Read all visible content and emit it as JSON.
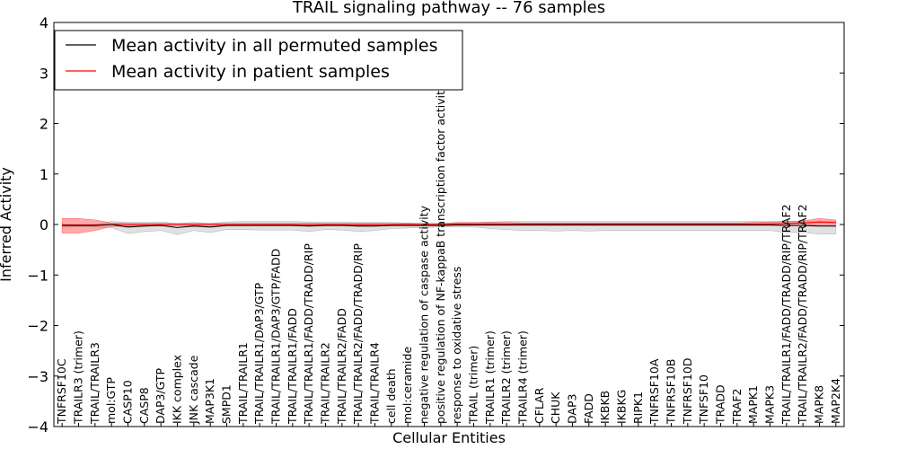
{
  "chart_data": {
    "type": "line",
    "title": "TRAIL signaling pathway -- 76 samples",
    "xlabel": "Cellular Entities",
    "ylabel": "Inferred Activity",
    "ylim": [
      -4,
      4
    ],
    "yticks": [
      -4,
      -3,
      -2,
      -1,
      0,
      1,
      2,
      3,
      4
    ],
    "ytick_labels": [
      "−4",
      "−3",
      "−2",
      "−1",
      "0",
      "1",
      "2",
      "3",
      "4"
    ],
    "grid": false,
    "legend_position": "top-left",
    "categories": [
      "TNFRSF10C",
      "TRAILR3 (trimer)",
      "TRAIL/TRAILR3",
      "mol:GTP",
      "CASP10",
      "CASP8",
      "DAP3/GTP",
      "IKK complex",
      "JNK cascade",
      "MAP3K1",
      "SMPD1",
      "TRAIL/TRAILR1",
      "TRAIL/TRAILR1/DAP3/GTP",
      "TRAIL/TRAILR1/DAP3/GTP/FADD",
      "TRAIL/TRAILR1/FADD",
      "TRAIL/TRAILR1/FADD/TRADD/RIP",
      "TRAIL/TRAILR2",
      "TRAIL/TRAILR2/FADD",
      "TRAIL/TRAILR2/FADD/TRADD/RIP",
      "TRAIL/TRAILR4",
      "cell death",
      "mol:ceramide",
      "negative regulation of caspase activity",
      "positive regulation of NF-kappaB transcription factor activity",
      "response to oxidative stress",
      "TRAIL (trimer)",
      "TRAILR1 (trimer)",
      "TRAILR2 (trimer)",
      "TRAILR4 (trimer)",
      "CFLAR",
      "CHUK",
      "DAP3",
      "FADD",
      "IKBKB",
      "IKBKG",
      "RIPK1",
      "TNFRSF10A",
      "TNFRSF10B",
      "TNFRSF10D",
      "TNFSF10",
      "TRADD",
      "TRAF2",
      "MAPK1",
      "MAPK3",
      "TRAIL/TRAILR1/FADD/TRADD/RIP/TRAF2",
      "TRAIL/TRAILR2/FADD/TRADD/RIP/TRAF2",
      "MAPK8",
      "MAP2K4"
    ],
    "series": [
      {
        "name": "Mean activity in all permuted samples",
        "color": "#000000",
        "values": [
          -0.02,
          -0.02,
          -0.02,
          0.0,
          -0.05,
          -0.03,
          -0.02,
          -0.06,
          -0.03,
          -0.05,
          -0.02,
          -0.02,
          -0.02,
          -0.02,
          -0.02,
          -0.03,
          -0.02,
          -0.02,
          -0.03,
          -0.03,
          -0.02,
          -0.02,
          -0.02,
          -0.02,
          -0.01,
          -0.01,
          -0.01,
          -0.01,
          -0.01,
          -0.01,
          -0.01,
          -0.01,
          -0.01,
          -0.01,
          -0.01,
          -0.01,
          -0.01,
          -0.01,
          -0.01,
          -0.01,
          -0.01,
          -0.01,
          -0.01,
          -0.01,
          -0.02,
          -0.02,
          -0.03,
          -0.03
        ],
        "lower": [
          -0.06,
          -0.04,
          -0.05,
          -0.06,
          -0.18,
          -0.14,
          -0.12,
          -0.2,
          -0.12,
          -0.16,
          -0.1,
          -0.1,
          -0.11,
          -0.11,
          -0.11,
          -0.14,
          -0.1,
          -0.11,
          -0.14,
          -0.12,
          -0.08,
          -0.07,
          -0.06,
          -0.05,
          -0.05,
          -0.05,
          -0.08,
          -0.1,
          -0.12,
          -0.12,
          -0.13,
          -0.12,
          -0.13,
          -0.12,
          -0.12,
          -0.12,
          -0.12,
          -0.12,
          -0.12,
          -0.12,
          -0.12,
          -0.12,
          -0.12,
          -0.12,
          -0.16,
          -0.16,
          -0.19,
          -0.19
        ],
        "upper": [
          0.02,
          0.0,
          0.01,
          0.06,
          0.04,
          0.04,
          0.05,
          0.02,
          0.04,
          0.02,
          0.05,
          0.06,
          0.06,
          0.06,
          0.06,
          0.05,
          0.05,
          0.05,
          0.04,
          0.04,
          0.04,
          0.03,
          0.02,
          0.01,
          0.03,
          0.04,
          0.05,
          0.06,
          0.06,
          0.06,
          0.06,
          0.06,
          0.06,
          0.06,
          0.06,
          0.06,
          0.06,
          0.06,
          0.06,
          0.06,
          0.06,
          0.06,
          0.06,
          0.06,
          0.06,
          0.06,
          0.06,
          0.06
        ]
      },
      {
        "name": "Mean activity in patient samples",
        "color": "#ff0000",
        "values": [
          -0.01,
          -0.01,
          -0.01,
          0.0,
          0.0,
          0.0,
          0.0,
          0.0,
          0.0,
          0.0,
          0.0,
          0.0,
          0.0,
          0.0,
          0.0,
          0.0,
          0.0,
          0.0,
          0.0,
          0.0,
          0.0,
          0.0,
          0.0,
          0.0,
          0.01,
          0.01,
          0.01,
          0.01,
          0.01,
          0.01,
          0.01,
          0.01,
          0.01,
          0.01,
          0.01,
          0.01,
          0.01,
          0.01,
          0.01,
          0.01,
          0.01,
          0.01,
          0.01,
          0.01,
          0.02,
          0.03,
          0.05,
          0.04
        ],
        "lower": [
          -0.17,
          -0.17,
          -0.12,
          -0.04,
          -0.03,
          -0.02,
          -0.02,
          -0.02,
          -0.02,
          -0.02,
          -0.02,
          -0.02,
          -0.02,
          -0.02,
          -0.02,
          -0.02,
          -0.02,
          -0.02,
          -0.02,
          -0.02,
          -0.02,
          -0.02,
          -0.02,
          -0.02,
          -0.01,
          -0.01,
          -0.01,
          -0.01,
          -0.01,
          -0.01,
          -0.01,
          -0.01,
          -0.01,
          -0.01,
          -0.01,
          -0.01,
          -0.01,
          -0.01,
          -0.01,
          -0.01,
          -0.01,
          -0.01,
          -0.01,
          -0.01,
          -0.02,
          -0.02,
          0.0,
          0.0
        ],
        "upper": [
          0.12,
          0.12,
          0.09,
          0.03,
          0.02,
          0.02,
          0.02,
          0.02,
          0.02,
          0.02,
          0.02,
          0.02,
          0.02,
          0.02,
          0.02,
          0.02,
          0.02,
          0.02,
          0.02,
          0.02,
          0.02,
          0.02,
          0.02,
          0.02,
          0.04,
          0.04,
          0.04,
          0.04,
          0.03,
          0.03,
          0.03,
          0.03,
          0.03,
          0.03,
          0.03,
          0.03,
          0.03,
          0.03,
          0.03,
          0.03,
          0.03,
          0.03,
          0.04,
          0.05,
          0.06,
          0.07,
          0.12,
          0.09
        ]
      }
    ]
  }
}
